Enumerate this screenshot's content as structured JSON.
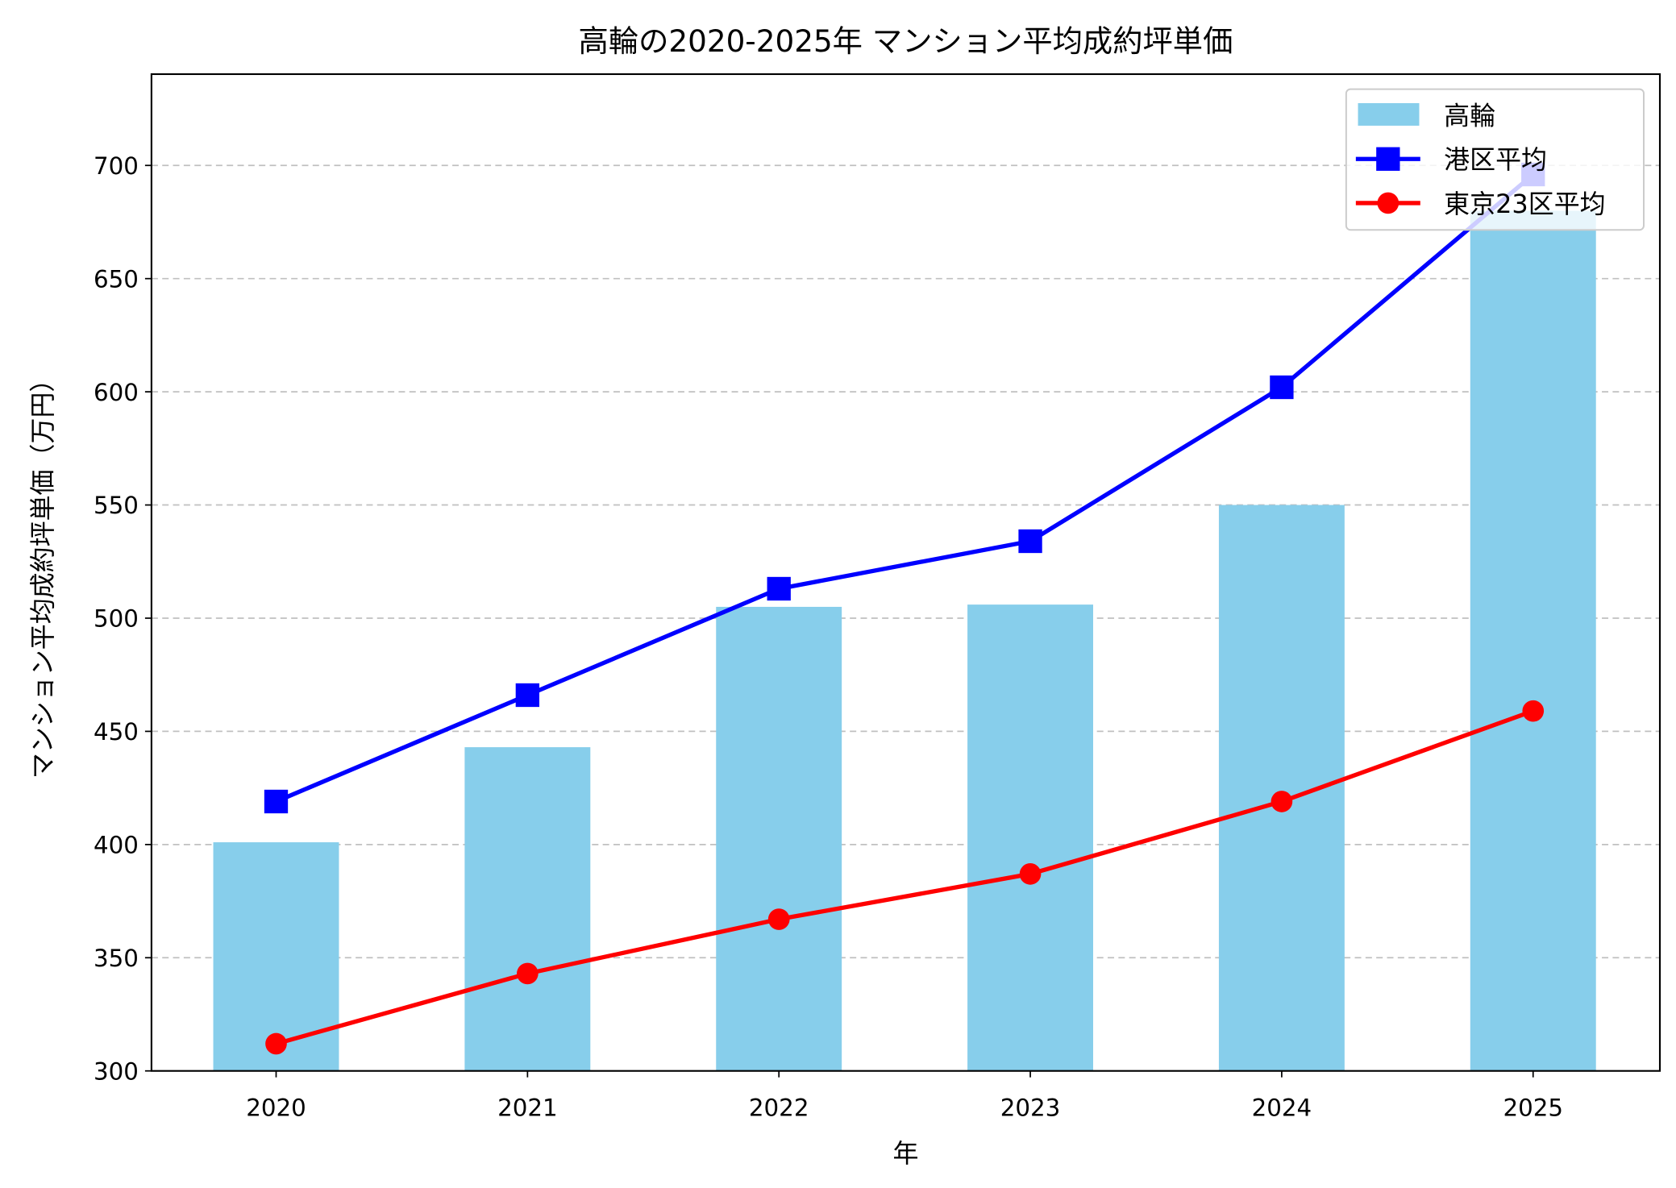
{
  "chart_data": {
    "type": "bar+line",
    "title": "高輪の2020-2025年 マンション平均成約坪単価",
    "xlabel": "年",
    "ylabel": "マンション平均成約坪単価（万円）",
    "categories": [
      "2020",
      "2021",
      "2022",
      "2023",
      "2024",
      "2025"
    ],
    "ylim": [
      300,
      740
    ],
    "yticks": [
      300,
      350,
      400,
      450,
      500,
      550,
      600,
      650,
      700
    ],
    "grid": "y-dashed",
    "legend_position": "top-right",
    "series": [
      {
        "name": "高輪",
        "kind": "bar",
        "color": "#87ceeb",
        "values": [
          401,
          443,
          505,
          506,
          550,
          680
        ]
      },
      {
        "name": "港区平均",
        "kind": "line",
        "marker": "square",
        "color": "#0000ff",
        "values": [
          419,
          466,
          513,
          534,
          602,
          696
        ]
      },
      {
        "name": "東京23区平均",
        "kind": "line",
        "marker": "circle",
        "color": "#ff0000",
        "values": [
          312,
          343,
          367,
          387,
          419,
          459
        ]
      }
    ]
  }
}
